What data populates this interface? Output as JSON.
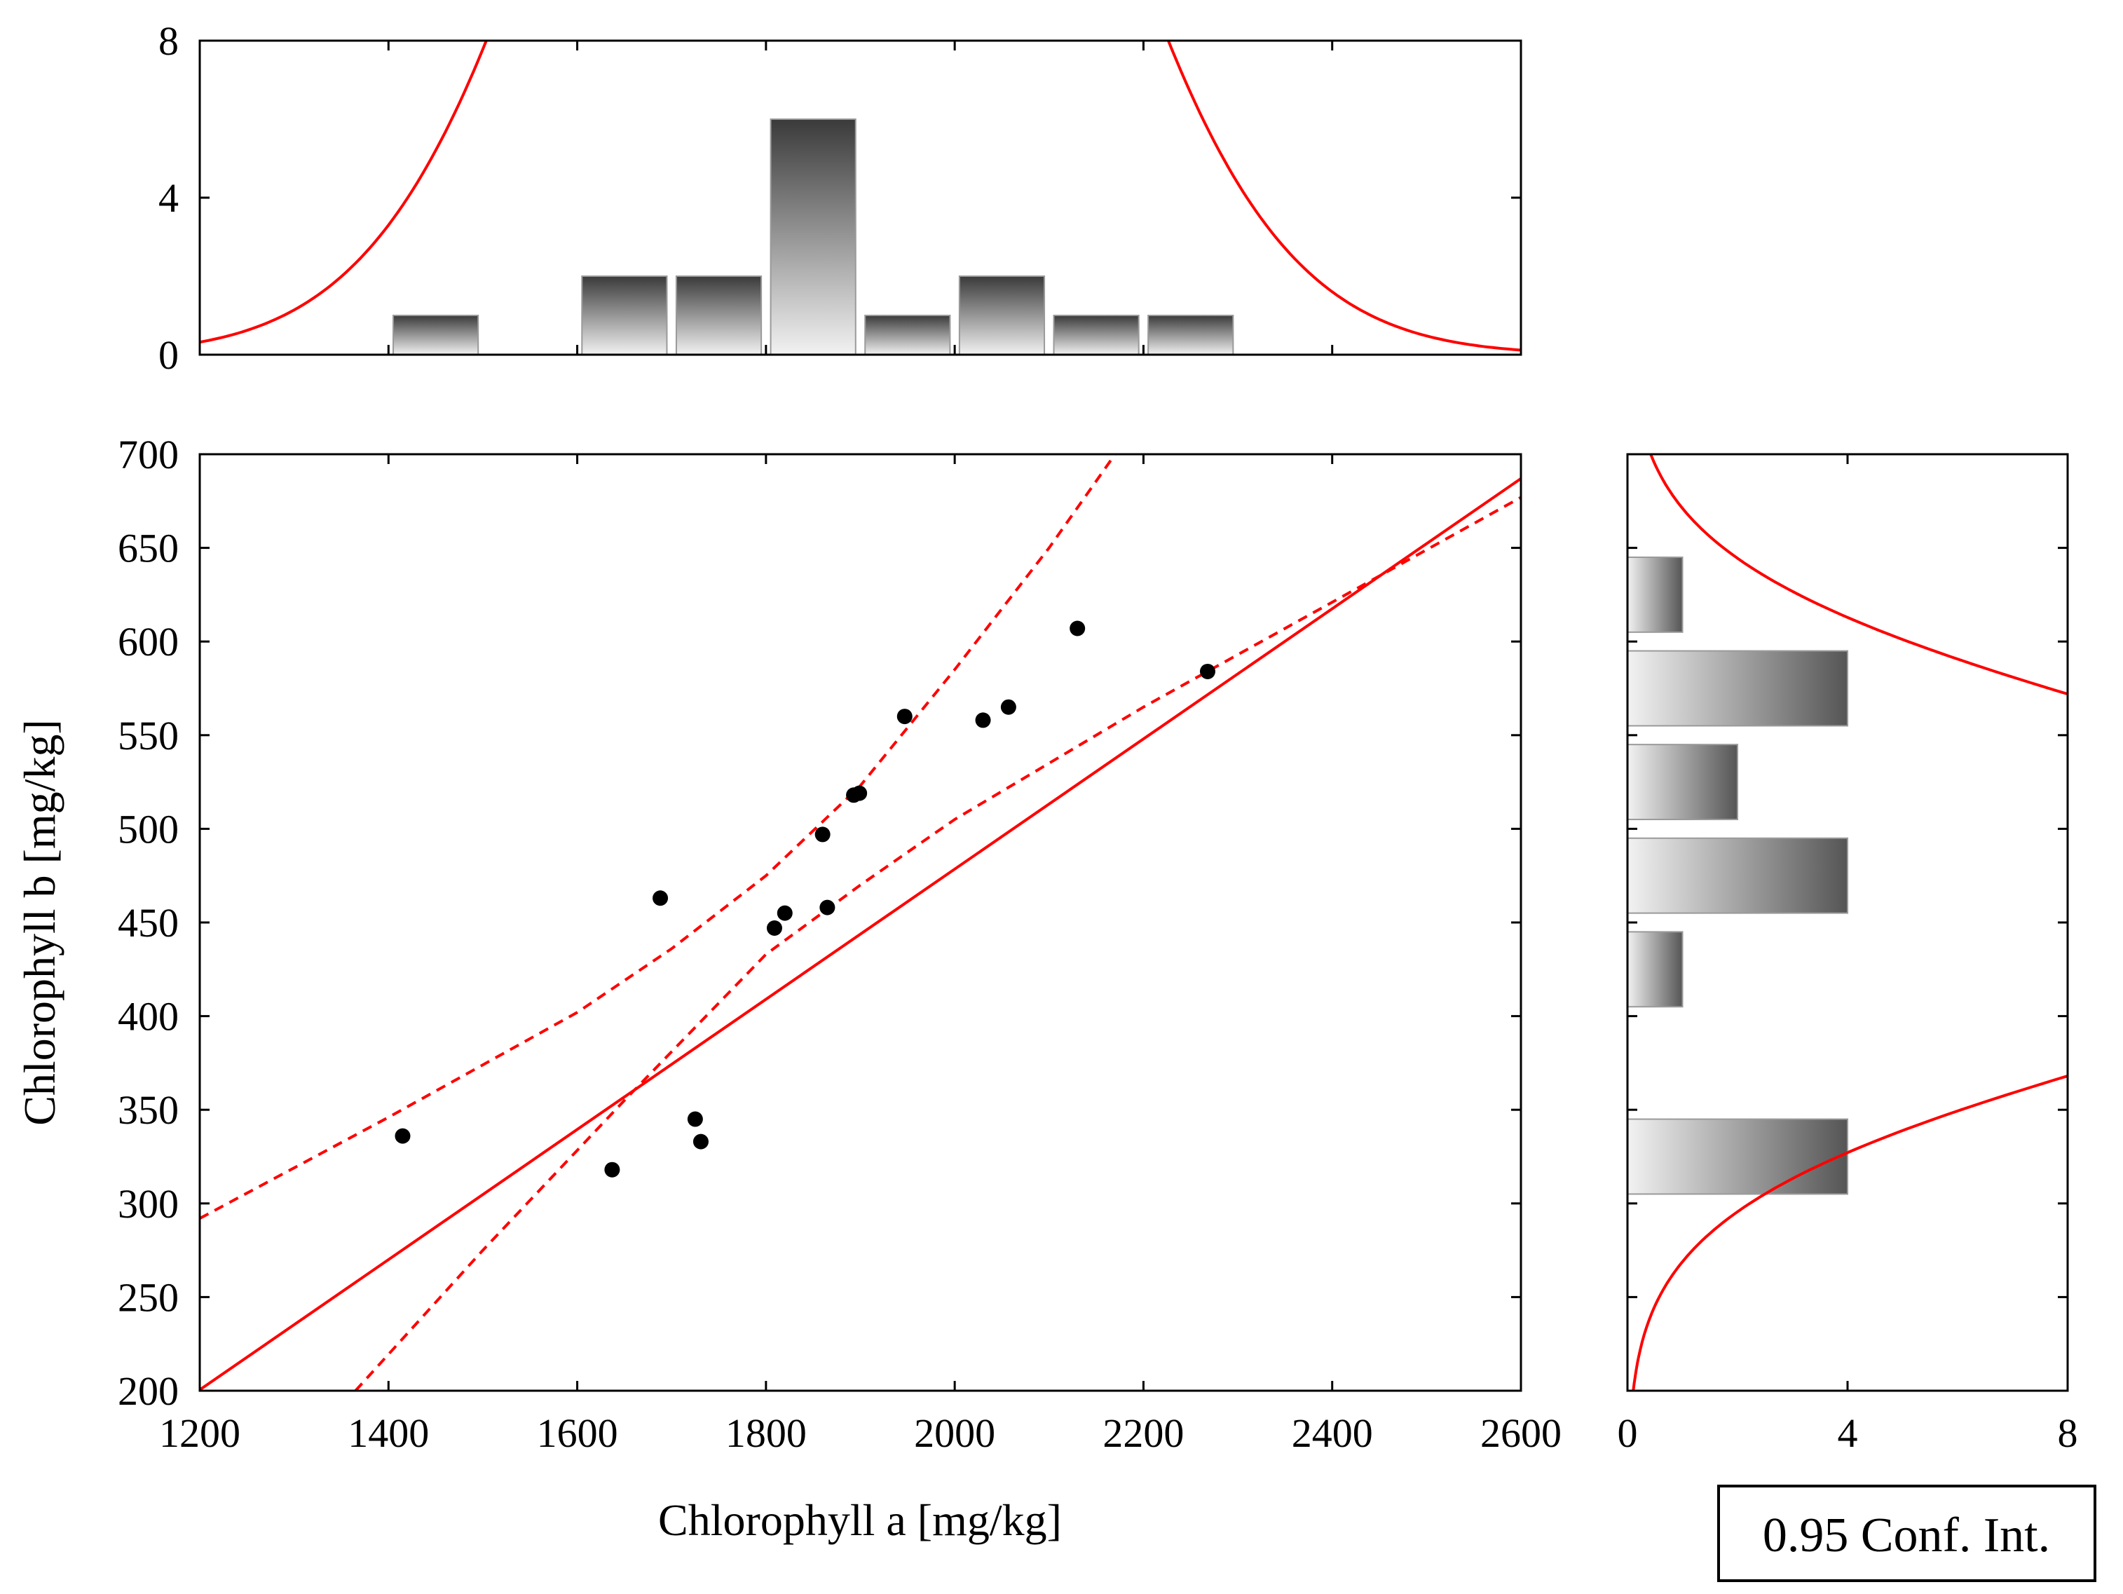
{
  "chart_data": [
    {
      "id": "top-histogram",
      "type": "bar",
      "title": "",
      "xlabel": "",
      "ylabel": "",
      "xlim": [
        1200,
        2600
      ],
      "ylim": [
        0,
        8
      ],
      "yticks": [
        "0",
        "4",
        "8"
      ],
      "bin_width": 100,
      "bars": [
        {
          "x": 1450,
          "count": 1
        },
        {
          "x": 1650,
          "count": 2
        },
        {
          "x": 1750,
          "count": 2
        },
        {
          "x": 1850,
          "count": 6
        },
        {
          "x": 1950,
          "count": 1
        },
        {
          "x": 2050,
          "count": 2
        },
        {
          "x": 2150,
          "count": 1
        },
        {
          "x": 2250,
          "count": 1
        }
      ],
      "normal_curve": {
        "mean": 1865,
        "sd": 220,
        "scale": 170
      }
    },
    {
      "id": "scatter",
      "type": "scatter",
      "title": "",
      "xlabel": "Chlorophyll a [mg/kg]",
      "ylabel": "Chlorophyll b [mg/kg]",
      "xlim": [
        1200,
        2600
      ],
      "ylim": [
        200,
        700
      ],
      "xticks": [
        "1200",
        "1400",
        "1600",
        "1800",
        "2000",
        "2200",
        "2400",
        "2600"
      ],
      "yticks": [
        "200",
        "250",
        "300",
        "350",
        "400",
        "450",
        "500",
        "550",
        "600",
        "650",
        "700"
      ],
      "points": [
        {
          "x": 1415,
          "y": 336
        },
        {
          "x": 1637,
          "y": 318
        },
        {
          "x": 1688,
          "y": 463
        },
        {
          "x": 1725,
          "y": 345
        },
        {
          "x": 1731,
          "y": 333
        },
        {
          "x": 1809,
          "y": 447
        },
        {
          "x": 1820,
          "y": 455
        },
        {
          "x": 1860,
          "y": 497
        },
        {
          "x": 1865,
          "y": 458
        },
        {
          "x": 1893,
          "y": 518
        },
        {
          "x": 1899,
          "y": 519
        },
        {
          "x": 1947,
          "y": 560
        },
        {
          "x": 2030,
          "y": 558
        },
        {
          "x": 2057,
          "y": 565
        },
        {
          "x": 2130,
          "y": 607
        },
        {
          "x": 2268,
          "y": 584
        }
      ],
      "regression": {
        "slope": 0.3475,
        "intercept": -216.5
      },
      "confidence_band": {
        "level": "0.95",
        "upper": [
          {
            "x": 1200,
            "y": 292
          },
          {
            "x": 1400,
            "y": 346
          },
          {
            "x": 1600,
            "y": 402
          },
          {
            "x": 1700,
            "y": 436
          },
          {
            "x": 1800,
            "y": 475
          },
          {
            "x": 1900,
            "y": 523
          },
          {
            "x": 2000,
            "y": 585
          },
          {
            "x": 2100,
            "y": 650
          },
          {
            "x": 2170,
            "y": 700
          }
        ],
        "lower": [
          {
            "x": 1365,
            "y": 200
          },
          {
            "x": 1500,
            "y": 275
          },
          {
            "x": 1650,
            "y": 355
          },
          {
            "x": 1800,
            "y": 433
          },
          {
            "x": 1900,
            "y": 470
          },
          {
            "x": 2000,
            "y": 505
          },
          {
            "x": 2200,
            "y": 565
          },
          {
            "x": 2400,
            "y": 621
          },
          {
            "x": 2600,
            "y": 677
          }
        ]
      }
    },
    {
      "id": "right-histogram",
      "type": "bar",
      "orientation": "horizontal",
      "title": "",
      "xlabel": "",
      "ylabel": "",
      "xlim": [
        0,
        8
      ],
      "ylim": [
        200,
        700
      ],
      "xticks": [
        "0",
        "4",
        "8"
      ],
      "bin_width": 50,
      "bars": [
        {
          "y": 325,
          "count": 4
        },
        {
          "y": 425,
          "count": 1
        },
        {
          "y": 475,
          "count": 4
        },
        {
          "y": 525,
          "count": 2
        },
        {
          "y": 575,
          "count": 4
        },
        {
          "y": 625,
          "count": 1
        }
      ],
      "normal_curve": {
        "mean": 470,
        "sd": 85,
        "scale": 70
      }
    }
  ],
  "legend": {
    "label": "0.95 Conf. Int."
  },
  "colors": {
    "fit_line": "#ff0000",
    "points": "#000000",
    "bar_dark": "#3a3a3a",
    "bar_light": "#f2f2f2",
    "bar_border": "#9a9a9a"
  }
}
